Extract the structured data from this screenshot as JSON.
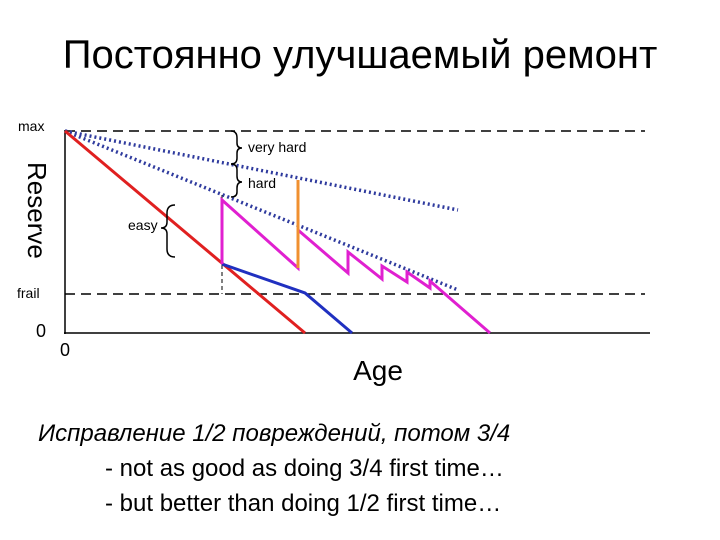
{
  "header": {
    "title": "Постоянно улучшаемый ремонт"
  },
  "diagram": {
    "labels": {
      "max": "max",
      "reserve": "Reserve",
      "frail": "frail",
      "zero_y": "0",
      "zero_x": "0",
      "age": "Age",
      "very_hard": "very hard",
      "hard": "hard",
      "easy": "easy"
    }
  },
  "caption": {
    "lines": [
      "Исправление 1/2 повреждений, потом 3/4",
      "- not as good as doing 3/4 first time…",
      "- but better than doing 1/2 first time…"
    ]
  }
}
